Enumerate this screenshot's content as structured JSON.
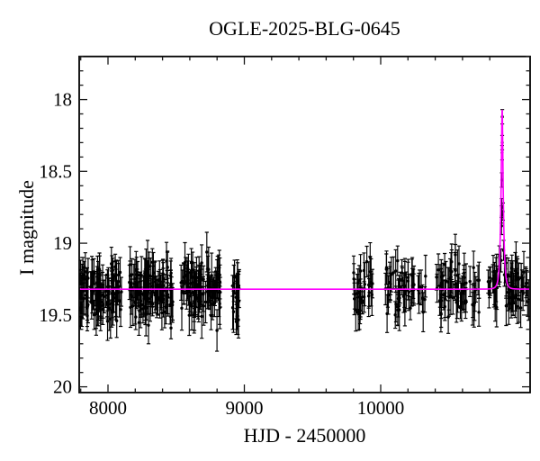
{
  "chart_data": {
    "type": "scatter",
    "title": "OGLE-2025-BLG-0645",
    "xlabel": "HJD - 2450000",
    "ylabel": "I magnitude",
    "xlim": [
      7789,
      11096
    ],
    "ylim": [
      17.7,
      20.04
    ],
    "y_axis_inverted": true,
    "grid": false,
    "x_major_ticks": [
      8000,
      9000,
      10000
    ],
    "x_tick_labels": [
      "8000",
      "9000",
      "10000"
    ],
    "x_minor_step": 200,
    "y_major_ticks": [
      18,
      18.5,
      19,
      19.5,
      20
    ],
    "y_tick_labels": [
      "18",
      "18.5",
      "19",
      "19.5",
      "20"
    ],
    "y_minor_step": 0.1,
    "marker_color": "#000000",
    "model_curve": {
      "color": "#ff00ff",
      "baseline_mag": 19.32,
      "t0": 10891,
      "tE": 16,
      "u0": 0.33,
      "peak_mag": 18.05
    },
    "seasons": [
      {
        "t_start": 7789,
        "t_end": 8099,
        "n": 110,
        "mag_mean": 19.33,
        "mag_sigma": 0.095
      },
      {
        "t_start": 8152,
        "t_end": 8475,
        "n": 110,
        "mag_mean": 19.33,
        "mag_sigma": 0.095
      },
      {
        "t_start": 8528,
        "t_end": 8825,
        "n": 100,
        "mag_mean": 19.33,
        "mag_sigma": 0.095
      },
      {
        "t_start": 8904,
        "t_end": 8970,
        "n": 18,
        "mag_mean": 19.33,
        "mag_sigma": 0.115
      },
      {
        "t_start": 9802,
        "t_end": 9947,
        "n": 30,
        "mag_mean": 19.32,
        "mag_sigma": 0.1
      },
      {
        "t_start": 10033,
        "t_end": 10330,
        "n": 55,
        "mag_mean": 19.32,
        "mag_sigma": 0.095
      },
      {
        "t_start": 10409,
        "t_end": 10726,
        "n": 60,
        "mag_mean": 19.32,
        "mag_sigma": 0.095
      },
      {
        "t_start": 10785,
        "t_end": 11090,
        "n": 60,
        "mag_mean": 19.32,
        "mag_sigma": 0.095
      }
    ],
    "peak_points": [
      {
        "t": 10874.0,
        "mag": 19.18,
        "err": 0.09
      },
      {
        "t": 10882.0,
        "mag": 19.12,
        "err": 0.08
      },
      {
        "t": 10886.0,
        "mag": 18.88,
        "err": 0.06
      },
      {
        "t": 10887.0,
        "mag": 18.8,
        "err": 0.06
      },
      {
        "t": 10888.0,
        "mag": 18.75,
        "err": 0.06
      },
      {
        "t": 10889.0,
        "mag": 18.56,
        "err": 0.05
      },
      {
        "t": 10890.5,
        "mag": 18.37,
        "err": 0.05
      },
      {
        "t": 10891.5,
        "mag": 18.3,
        "err": 0.05
      },
      {
        "t": 10892.0,
        "mag": 18.12,
        "err": 0.05
      },
      {
        "t": 10897.0,
        "mag": 18.78,
        "err": 0.06
      },
      {
        "t": 10901.0,
        "mag": 19.05,
        "err": 0.07
      },
      {
        "t": 10908.0,
        "mag": 19.22,
        "err": 0.08
      }
    ]
  }
}
